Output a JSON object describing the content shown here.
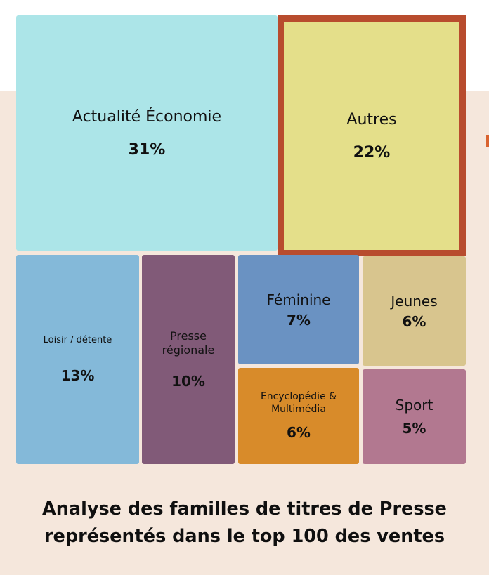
{
  "chart_data": {
    "type": "treemap",
    "title": "Analyse des familles de titres de Presse représentés dans le top 100 des ventes",
    "title_lines": [
      "Analyse des familles de titres de Presse",
      "représentés dans le top 100 des ventes"
    ],
    "unit": "%",
    "items": [
      {
        "label": "Actualité Économie",
        "value": 31,
        "display": "31%",
        "color": "#ace5e8"
      },
      {
        "label": "Autres",
        "value": 22,
        "display": "22%",
        "color": "#e4df8a",
        "highlight": true,
        "border_color": "#b84c2e"
      },
      {
        "label": "Loisir / détente",
        "value": 13,
        "display": "13%",
        "color": "#84b9d9"
      },
      {
        "label": "Presse régionale",
        "value": 10,
        "display": "10%",
        "color": "#815a78",
        "label_lines": [
          "Presse",
          "régionale"
        ]
      },
      {
        "label": "Féminine",
        "value": 7,
        "display": "7%",
        "color": "#6a92c2"
      },
      {
        "label": "Jeunes",
        "value": 6,
        "display": "6%",
        "color": "#d8c58e"
      },
      {
        "label": "Encyclopédie & Multimédia",
        "value": 6,
        "display": "6%",
        "color": "#d88b2a",
        "label_lines": [
          "Encyclopédie &",
          "Multimédia"
        ]
      },
      {
        "label": "Sport",
        "value": 5,
        "display": "5%",
        "color": "#b27890"
      }
    ]
  },
  "colors": {
    "page_background": "#ffffff",
    "band_background": "#f5e7dc",
    "text": "#111111"
  }
}
